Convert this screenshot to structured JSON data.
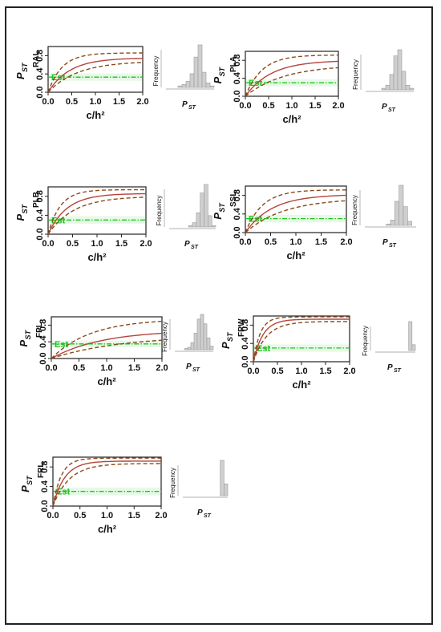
{
  "panel_common": {
    "ylabel_main": "P",
    "ylabel_sub": "ST",
    "xlabel": "c/h²",
    "hist_ylabel": "Frequency",
    "hist_xlabel_main": "P",
    "hist_xlabel_sub": "ST",
    "est_label": "Est",
    "xticks": [
      "0.0",
      "0.5",
      "1.0",
      "1.5",
      "2.0"
    ],
    "yticks": [
      "0.0",
      "0.4",
      "0.8"
    ],
    "colors": {
      "median": "#b5443c",
      "ci": "#8a4a1a",
      "est": "#22c322",
      "hist_fill": "#cfcfcf",
      "hist_edge": "#9a9a9a"
    }
  },
  "chart_data": [
    {
      "type": "line",
      "label": "RAL",
      "series": [
        {
          "role": "median",
          "plateau": 0.75,
          "rate": 2.2
        },
        {
          "role": "upper",
          "plateau": 0.86,
          "rate": 3.4
        },
        {
          "role": "lower",
          "plateau": 0.68,
          "rate": 1.6
        }
      ],
      "est": 0.33,
      "xlim": [
        0,
        2
      ],
      "ylim": [
        0,
        1
      ],
      "hist": [
        0,
        0,
        0,
        1,
        2,
        4,
        9,
        20,
        28,
        10,
        3,
        1
      ]
    },
    {
      "type": "line",
      "label": "PLA",
      "series": [
        {
          "role": "median",
          "plateau": 0.8,
          "rate": 1.8
        },
        {
          "role": "upper",
          "plateau": 0.92,
          "rate": 2.8
        },
        {
          "role": "lower",
          "plateau": 0.7,
          "rate": 1.2
        }
      ],
      "est": 0.3,
      "xlim": [
        0,
        2
      ],
      "ylim": [
        0,
        1
      ],
      "hist": [
        0,
        0,
        0,
        0,
        1,
        3,
        10,
        22,
        26,
        12,
        3,
        1
      ]
    },
    {
      "type": "line",
      "label": "PLB",
      "series": [
        {
          "role": "median",
          "plateau": 0.86,
          "rate": 2.6
        },
        {
          "role": "upper",
          "plateau": 0.94,
          "rate": 4.0
        },
        {
          "role": "lower",
          "plateau": 0.8,
          "rate": 1.9
        }
      ],
      "est": 0.3,
      "xlim": [
        0,
        2
      ],
      "ylim": [
        0,
        1
      ],
      "hist": [
        0,
        0,
        0,
        0,
        0,
        1,
        3,
        10,
        24,
        30,
        8,
        1
      ]
    },
    {
      "type": "line",
      "label": "SSL",
      "series": [
        {
          "role": "median",
          "plateau": 0.82,
          "rate": 1.9
        },
        {
          "role": "upper",
          "plateau": 0.92,
          "rate": 3.0
        },
        {
          "role": "lower",
          "plateau": 0.74,
          "rate": 1.3
        }
      ],
      "est": 0.3,
      "xlim": [
        0,
        2
      ],
      "ylim": [
        0,
        1
      ],
      "hist": [
        0,
        0,
        0,
        0,
        0,
        1,
        4,
        18,
        30,
        14,
        3,
        0
      ]
    },
    {
      "type": "line",
      "label": "FPL",
      "series": [
        {
          "role": "median",
          "plateau": 0.68,
          "rate": 1.1
        },
        {
          "role": "upper",
          "plateau": 0.95,
          "rate": 1.4
        },
        {
          "role": "lower",
          "plateau": 0.55,
          "rate": 0.8
        }
      ],
      "est": 0.35,
      "xlim": [
        0,
        2
      ],
      "ylim": [
        0,
        1
      ],
      "hist": [
        0,
        0,
        0,
        1,
        2,
        6,
        14,
        26,
        30,
        22,
        10,
        3
      ]
    },
    {
      "type": "line",
      "label": "FRW",
      "series": [
        {
          "role": "median",
          "plateau": 0.93,
          "rate": 5.0
        },
        {
          "role": "upper",
          "plateau": 0.98,
          "rate": 7.0
        },
        {
          "role": "lower",
          "plateau": 0.88,
          "rate": 3.6
        }
      ],
      "est": 0.3,
      "xlim": [
        0,
        2
      ],
      "ylim": [
        0,
        1
      ],
      "hist": [
        0,
        0,
        0,
        0,
        0,
        0,
        0,
        0,
        0,
        0,
        30,
        6
      ]
    },
    {
      "type": "line",
      "label": "FRL",
      "series": [
        {
          "role": "median",
          "plateau": 0.92,
          "rate": 4.6
        },
        {
          "role": "upper",
          "plateau": 0.98,
          "rate": 6.5
        },
        {
          "role": "lower",
          "plateau": 0.87,
          "rate": 3.3
        }
      ],
      "est": 0.3,
      "xlim": [
        0,
        2
      ],
      "ylim": [
        0,
        1
      ],
      "hist": [
        0,
        0,
        0,
        0,
        0,
        0,
        0,
        0,
        0,
        0,
        30,
        10
      ]
    }
  ]
}
